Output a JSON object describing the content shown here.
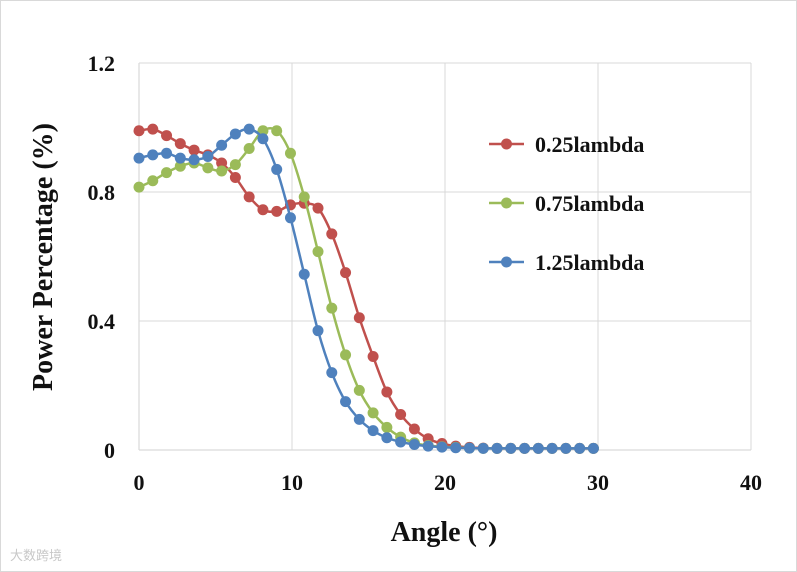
{
  "chart_data": {
    "type": "line",
    "title": "",
    "xlabel": "Angle (°)",
    "ylabel": "Power Percentage (%)",
    "xlim": [
      0,
      40
    ],
    "ylim": [
      0,
      1.2
    ],
    "xticks": [
      "0",
      "10",
      "20",
      "30",
      "40"
    ],
    "yticks": [
      "0",
      "0.4",
      "0.8",
      "1.2"
    ],
    "grid": true,
    "legend_position": "right",
    "x": [
      0,
      0.9,
      1.8,
      2.7,
      3.6,
      4.5,
      5.4,
      6.3,
      7.2,
      8.1,
      9.0,
      9.9,
      10.8,
      11.7,
      12.6,
      13.5,
      14.4,
      15.3,
      16.2,
      17.1,
      18.0,
      18.9,
      19.8,
      20.7,
      21.6,
      22.5,
      23.4,
      24.3,
      25.2,
      26.1,
      27.0,
      27.9,
      28.8,
      29.7
    ],
    "series": [
      {
        "name": "0.25lambda",
        "color": "#c0504d",
        "values": [
          0.99,
          0.995,
          0.975,
          0.95,
          0.93,
          0.915,
          0.89,
          0.845,
          0.785,
          0.745,
          0.74,
          0.76,
          0.765,
          0.75,
          0.67,
          0.55,
          0.41,
          0.29,
          0.18,
          0.11,
          0.065,
          0.035,
          0.02,
          0.012,
          0.008,
          0.006,
          0.005,
          0.005,
          0.005,
          0.005,
          0.005,
          0.005,
          0.005,
          0.005
        ]
      },
      {
        "name": "0.75lambda",
        "color": "#9bbb59",
        "values": [
          0.815,
          0.835,
          0.86,
          0.88,
          0.89,
          0.875,
          0.865,
          0.885,
          0.935,
          0.99,
          0.99,
          0.92,
          0.785,
          0.615,
          0.44,
          0.295,
          0.185,
          0.115,
          0.07,
          0.04,
          0.022,
          0.014,
          0.01,
          0.008,
          0.006,
          0.005,
          0.005,
          0.005,
          0.005,
          0.005,
          0.005,
          0.005,
          0.005,
          0.005
        ]
      },
      {
        "name": "1.25lambda",
        "color": "#4f81bd",
        "values": [
          0.905,
          0.915,
          0.92,
          0.905,
          0.9,
          0.91,
          0.945,
          0.98,
          0.995,
          0.965,
          0.87,
          0.72,
          0.545,
          0.37,
          0.24,
          0.15,
          0.095,
          0.06,
          0.038,
          0.025,
          0.017,
          0.012,
          0.009,
          0.007,
          0.006,
          0.005,
          0.005,
          0.005,
          0.005,
          0.005,
          0.005,
          0.005,
          0.005,
          0.005
        ]
      }
    ]
  },
  "watermark": "大数跨境"
}
